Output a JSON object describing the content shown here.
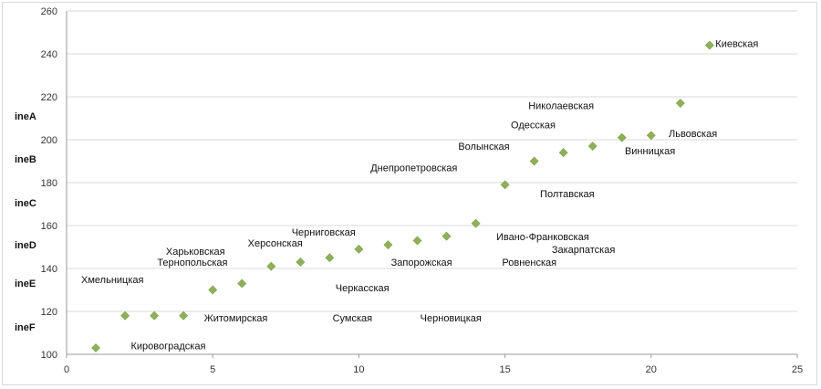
{
  "chart_data": {
    "type": "scatter",
    "xlim": [
      0,
      25
    ],
    "ylim": [
      100,
      260
    ],
    "x_ticks": [
      0,
      5,
      10,
      15,
      20,
      25
    ],
    "y_ticks": [
      100,
      120,
      140,
      160,
      180,
      200,
      220,
      240,
      260
    ],
    "grid": "horizontal",
    "marker_color": "#8db255",
    "band_labels": [
      "ineA",
      "ineB",
      "ineC",
      "ineD",
      "ineE",
      "ineF"
    ],
    "points": [
      {
        "x": 1,
        "y": 103
      },
      {
        "x": 2,
        "y": 118
      },
      {
        "x": 3,
        "y": 118
      },
      {
        "x": 4,
        "y": 118
      },
      {
        "x": 5,
        "y": 130
      },
      {
        "x": 6,
        "y": 133
      },
      {
        "x": 7,
        "y": 141
      },
      {
        "x": 8,
        "y": 143
      },
      {
        "x": 9,
        "y": 145
      },
      {
        "x": 10,
        "y": 149
      },
      {
        "x": 11,
        "y": 151
      },
      {
        "x": 12,
        "y": 153
      },
      {
        "x": 13,
        "y": 155
      },
      {
        "x": 14,
        "y": 161
      },
      {
        "x": 15,
        "y": 179
      },
      {
        "x": 16,
        "y": 190
      },
      {
        "x": 17,
        "y": 194
      },
      {
        "x": 18,
        "y": 197
      },
      {
        "x": 19,
        "y": 201
      },
      {
        "x": 20,
        "y": 202
      },
      {
        "x": 21,
        "y": 217
      },
      {
        "x": 22,
        "y": 244
      }
    ],
    "annotations": [
      {
        "text": "Кировоградская",
        "x": 2.2,
        "y": 104
      },
      {
        "text": "Хмельницкая",
        "x": 0.5,
        "y": 135
      },
      {
        "text": "Житомирская",
        "x": 4.7,
        "y": 117
      },
      {
        "text": "Тернопольская",
        "x": 3.1,
        "y": 143
      },
      {
        "text": "Харьковская",
        "x": 3.4,
        "y": 148
      },
      {
        "text": "Херсонская",
        "x": 6.2,
        "y": 152
      },
      {
        "text": "Черниговская",
        "x": 7.7,
        "y": 157
      },
      {
        "text": "Черкасская",
        "x": 9.2,
        "y": 131
      },
      {
        "text": "Сумская",
        "x": 9.1,
        "y": 117
      },
      {
        "text": "Запорожская",
        "x": 11.1,
        "y": 143
      },
      {
        "text": "Черновицкая",
        "x": 12.1,
        "y": 117
      },
      {
        "text": "Ивано-Франковская",
        "x": 14.7,
        "y": 155
      },
      {
        "text": "Ровненская",
        "x": 14.9,
        "y": 143
      },
      {
        "text": "Закарпатская",
        "x": 16.6,
        "y": 149
      },
      {
        "text": "Полтавская",
        "x": 16.2,
        "y": 175
      },
      {
        "text": "Днепропетровская",
        "x": 10.4,
        "y": 187
      },
      {
        "text": "Волынская",
        "x": 13.4,
        "y": 197
      },
      {
        "text": "Одесская",
        "x": 15.2,
        "y": 207
      },
      {
        "text": "Николаевская",
        "x": 15.8,
        "y": 216
      },
      {
        "text": "Винницкая",
        "x": 19.1,
        "y": 195
      },
      {
        "text": "Львовская",
        "x": 20.6,
        "y": 203
      },
      {
        "text": "Киевская",
        "x": 22.2,
        "y": 245
      }
    ]
  }
}
